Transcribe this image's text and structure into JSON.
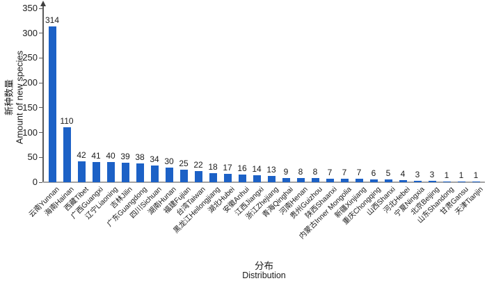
{
  "chart_data": {
    "type": "bar",
    "title": "",
    "xlabel_zh": "分布",
    "xlabel_en": "Distribution",
    "ylabel_zh": "新种数量",
    "ylabel_en": "Amount of new species",
    "ylim": [
      0,
      350
    ],
    "y_ticks": [
      0,
      50,
      100,
      150,
      200,
      250,
      300,
      350
    ],
    "grid": false,
    "legend": "none",
    "data_labels": true,
    "bar_color": "#1c61c6",
    "y_axis_color": "#595959",
    "x_axis_color": "#a3a3a3",
    "text_color": "#1a1a1a",
    "categories": [
      "云南Yunnan",
      "海南Hainan",
      "西藏Tibet",
      "广西Guangxi",
      "辽宁Liaoning",
      "吉林Jilin",
      "广东Guangdong",
      "四川Sichuan",
      "湖南Hunan",
      "福建Fujian",
      "台湾Taiwan",
      "黑龙江Heilongjiang",
      "湖北Hubei",
      "安徽Anhui",
      "江西Jiangxi",
      "浙江Zhejiang",
      "青海Qinghai",
      "河南Henan",
      "贵州Guizhou",
      "陕西Shaanxi",
      "内蒙古Inner Mongolia",
      "新疆Xinjiang",
      "重庆Chongqing",
      "山西Shanxi",
      "河北Hebei",
      "宁夏Ningxia",
      "北京Beijing",
      "山东Shandong",
      "甘肃Gansu",
      "天津Tianjin"
    ],
    "values": [
      314,
      110,
      42,
      41,
      40,
      39,
      38,
      34,
      30,
      25,
      22,
      18,
      17,
      16,
      14,
      13,
      9,
      8,
      8,
      7,
      7,
      7,
      6,
      5,
      4,
      3,
      3,
      1,
      1,
      1
    ]
  }
}
